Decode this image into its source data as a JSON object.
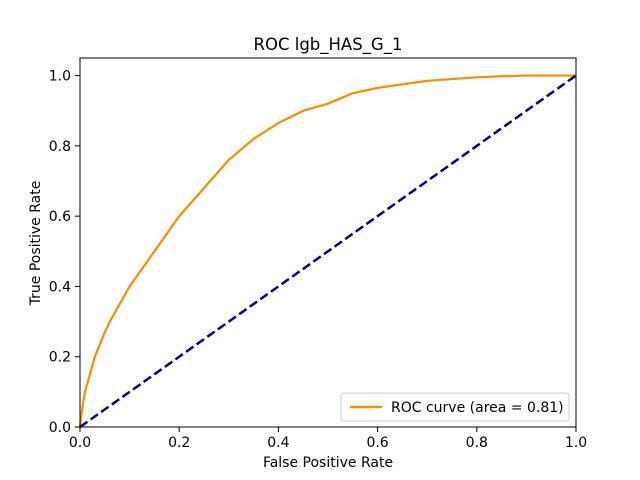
{
  "chart_data": {
    "type": "line",
    "title": "ROC lgb_HAS_G_1",
    "xlabel": "False Positive Rate",
    "ylabel": "True Positive Rate",
    "xlim": [
      0.0,
      1.0
    ],
    "ylim": [
      0.0,
      1.05
    ],
    "x_ticks": [
      0.0,
      0.2,
      0.4,
      0.6,
      0.8,
      1.0
    ],
    "y_ticks": [
      0.0,
      0.2,
      0.4,
      0.6,
      0.8,
      1.0
    ],
    "x_tick_labels": [
      "0.0",
      "0.2",
      "0.4",
      "0.6",
      "0.8",
      "1.0"
    ],
    "y_tick_labels": [
      "0.0",
      "0.2",
      "0.4",
      "0.6",
      "0.8",
      "1.0"
    ],
    "grid": false,
    "legend_position": "lower-right",
    "series": [
      {
        "name": "ROC curve (area = 0.81)",
        "color": "#ff8c00",
        "style": "solid",
        "x": [
          0.0,
          0.005,
          0.01,
          0.02,
          0.03,
          0.04,
          0.05,
          0.06,
          0.08,
          0.1,
          0.12,
          0.15,
          0.18,
          0.2,
          0.25,
          0.3,
          0.35,
          0.4,
          0.45,
          0.5,
          0.55,
          0.6,
          0.65,
          0.7,
          0.75,
          0.8,
          0.85,
          0.9,
          0.95,
          1.0
        ],
        "y": [
          0.0,
          0.06,
          0.1,
          0.15,
          0.2,
          0.235,
          0.27,
          0.3,
          0.35,
          0.4,
          0.44,
          0.5,
          0.56,
          0.6,
          0.68,
          0.76,
          0.82,
          0.865,
          0.9,
          0.92,
          0.95,
          0.965,
          0.975,
          0.985,
          0.99,
          0.995,
          0.998,
          1.0,
          1.0,
          1.0
        ]
      },
      {
        "name": "",
        "color": "#000080",
        "style": "dashed",
        "x": [
          0.0,
          1.0
        ],
        "y": [
          0.0,
          1.0
        ]
      }
    ]
  }
}
